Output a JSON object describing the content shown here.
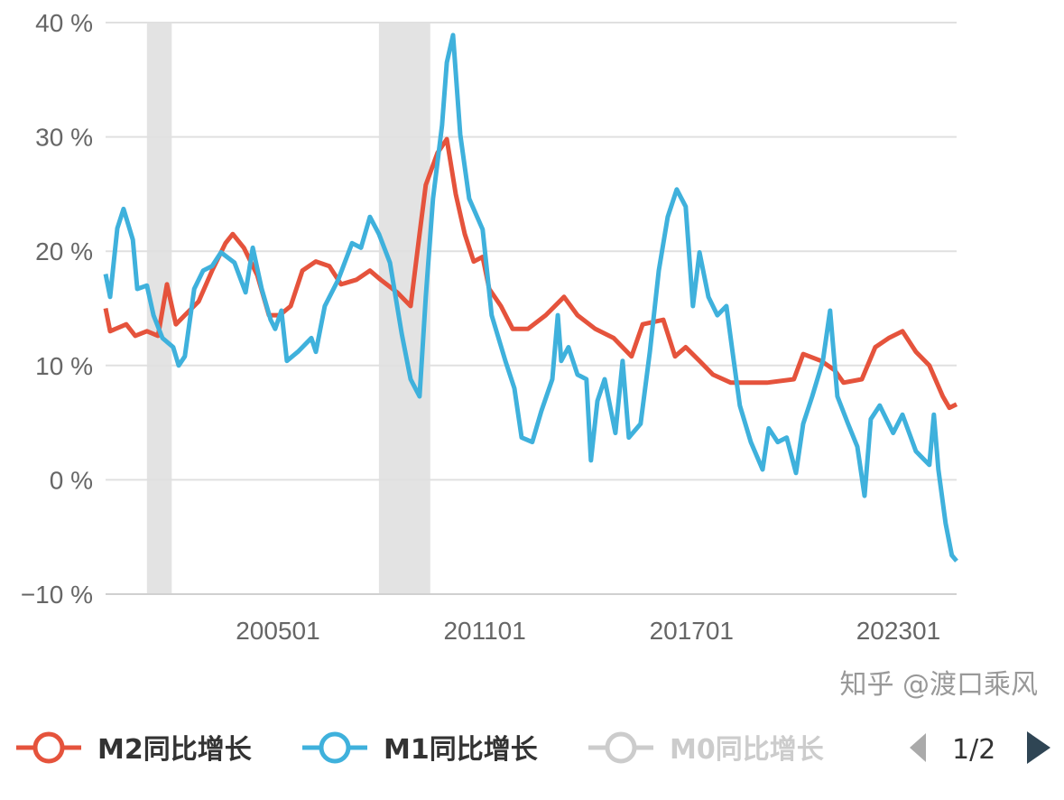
{
  "chart_data": {
    "type": "line",
    "title": "",
    "xlabel": "",
    "ylabel": "",
    "xlim": [
      2000.0,
      2024.69
    ],
    "ylim": [
      -10,
      40
    ],
    "grid": true,
    "y_ticks": [
      {
        "value": -10,
        "label": "−10 %"
      },
      {
        "value": 0,
        "label": "0 %"
      },
      {
        "value": 10,
        "label": "10 %"
      },
      {
        "value": 20,
        "label": "20 %"
      },
      {
        "value": 30,
        "label": "30 %"
      },
      {
        "value": 40,
        "label": "40 %"
      }
    ],
    "x_ticks": [
      {
        "value": 2005.0,
        "label": "200501"
      },
      {
        "value": 2011.0,
        "label": "201101"
      },
      {
        "value": 2017.0,
        "label": "201701"
      },
      {
        "value": 2023.0,
        "label": "202301"
      }
    ],
    "shaded_periods": [
      [
        2001.2,
        2001.92
      ],
      [
        2007.93,
        2009.42
      ]
    ],
    "shade_color": "#e3e3e3",
    "legend_position": "bottom",
    "series": [
      {
        "name": "M2同比增长",
        "color": "#e5533c",
        "visible": true,
        "points": [
          [
            2000.0,
            15
          ],
          [
            2000.13,
            13
          ],
          [
            2000.6,
            13.6
          ],
          [
            2000.86,
            12.6
          ],
          [
            2001.2,
            13
          ],
          [
            2001.52,
            12.6
          ],
          [
            2001.78,
            17.1
          ],
          [
            2002.04,
            13.6
          ],
          [
            2002.3,
            14.4
          ],
          [
            2002.7,
            15.6
          ],
          [
            2003.09,
            18.3
          ],
          [
            2003.48,
            20.7
          ],
          [
            2003.69,
            21.5
          ],
          [
            2004.01,
            20.3
          ],
          [
            2004.4,
            17.9
          ],
          [
            2004.74,
            14.4
          ],
          [
            2005.05,
            14.4
          ],
          [
            2005.37,
            15.2
          ],
          [
            2005.71,
            18.3
          ],
          [
            2006.1,
            19.1
          ],
          [
            2006.49,
            18.7
          ],
          [
            2006.83,
            17.1
          ],
          [
            2007.28,
            17.5
          ],
          [
            2007.67,
            18.3
          ],
          [
            2007.98,
            17.5
          ],
          [
            2008.46,
            16.4
          ],
          [
            2008.85,
            15.2
          ],
          [
            2009.11,
            21.5
          ],
          [
            2009.29,
            25.8
          ],
          [
            2009.63,
            28.6
          ],
          [
            2009.9,
            29.8
          ],
          [
            2010.16,
            25
          ],
          [
            2010.42,
            21.5
          ],
          [
            2010.68,
            19.1
          ],
          [
            2010.94,
            19.5
          ],
          [
            2011.13,
            16.7
          ],
          [
            2011.47,
            15.2
          ],
          [
            2011.81,
            13.2
          ],
          [
            2012.25,
            13.2
          ],
          [
            2012.77,
            14.4
          ],
          [
            2013.3,
            16
          ],
          [
            2013.69,
            14.4
          ],
          [
            2014.21,
            13.2
          ],
          [
            2014.74,
            12.4
          ],
          [
            2015.26,
            10.8
          ],
          [
            2015.58,
            13.6
          ],
          [
            2016.18,
            14
          ],
          [
            2016.52,
            10.8
          ],
          [
            2016.83,
            11.6
          ],
          [
            2017.23,
            10.4
          ],
          [
            2017.62,
            9.2
          ],
          [
            2018.14,
            8.5
          ],
          [
            2018.66,
            8.5
          ],
          [
            2019.19,
            8.5
          ],
          [
            2019.97,
            8.8
          ],
          [
            2020.24,
            11
          ],
          [
            2020.76,
            10.4
          ],
          [
            2021.15,
            9.6
          ],
          [
            2021.41,
            8.5
          ],
          [
            2021.94,
            8.8
          ],
          [
            2022.33,
            11.6
          ],
          [
            2022.72,
            12.4
          ],
          [
            2023.12,
            13
          ],
          [
            2023.51,
            11.2
          ],
          [
            2023.9,
            10
          ],
          [
            2024.29,
            7.3
          ],
          [
            2024.48,
            6.3
          ],
          [
            2024.69,
            6.6
          ]
        ]
      },
      {
        "name": "M1同比增长",
        "color": "#3fb1dc",
        "visible": true,
        "points": [
          [
            2000.0,
            18
          ],
          [
            2000.13,
            16
          ],
          [
            2000.34,
            22
          ],
          [
            2000.52,
            23.7
          ],
          [
            2000.79,
            21
          ],
          [
            2000.92,
            16.7
          ],
          [
            2001.2,
            17
          ],
          [
            2001.39,
            14.4
          ],
          [
            2001.65,
            12.4
          ],
          [
            2001.96,
            11.6
          ],
          [
            2002.12,
            10
          ],
          [
            2002.3,
            10.8
          ],
          [
            2002.57,
            16.7
          ],
          [
            2002.83,
            18.3
          ],
          [
            2003.09,
            18.7
          ],
          [
            2003.35,
            19.9
          ],
          [
            2003.74,
            19
          ],
          [
            2004.06,
            16.4
          ],
          [
            2004.27,
            20.3
          ],
          [
            2004.53,
            16.7
          ],
          [
            2004.79,
            14
          ],
          [
            2004.92,
            13.2
          ],
          [
            2005.1,
            14.8
          ],
          [
            2005.26,
            10.4
          ],
          [
            2005.58,
            11.2
          ],
          [
            2005.97,
            12.4
          ],
          [
            2006.1,
            11.2
          ],
          [
            2006.36,
            15.2
          ],
          [
            2006.75,
            17.5
          ],
          [
            2007.15,
            20.7
          ],
          [
            2007.41,
            20.3
          ],
          [
            2007.67,
            23
          ],
          [
            2007.93,
            21.5
          ],
          [
            2008.25,
            19
          ],
          [
            2008.59,
            12.8
          ],
          [
            2008.85,
            8.8
          ],
          [
            2009.11,
            7.3
          ],
          [
            2009.29,
            16
          ],
          [
            2009.5,
            24.6
          ],
          [
            2009.76,
            31
          ],
          [
            2009.9,
            36.5
          ],
          [
            2010.08,
            38.9
          ],
          [
            2010.29,
            30.2
          ],
          [
            2010.55,
            24.6
          ],
          [
            2010.94,
            21.9
          ],
          [
            2011.2,
            14.4
          ],
          [
            2011.6,
            10.4
          ],
          [
            2011.86,
            8
          ],
          [
            2012.07,
            3.7
          ],
          [
            2012.38,
            3.3
          ],
          [
            2012.64,
            6
          ],
          [
            2012.96,
            8.8
          ],
          [
            2013.12,
            14.4
          ],
          [
            2013.22,
            10.4
          ],
          [
            2013.43,
            11.6
          ],
          [
            2013.69,
            9.2
          ],
          [
            2013.95,
            8.8
          ],
          [
            2014.08,
            1.7
          ],
          [
            2014.27,
            6.9
          ],
          [
            2014.48,
            8.8
          ],
          [
            2014.79,
            4.1
          ],
          [
            2015.0,
            10.4
          ],
          [
            2015.18,
            3.7
          ],
          [
            2015.52,
            4.9
          ],
          [
            2015.79,
            11.2
          ],
          [
            2016.05,
            18.3
          ],
          [
            2016.31,
            23
          ],
          [
            2016.57,
            25.4
          ],
          [
            2016.83,
            23.9
          ],
          [
            2017.04,
            15.2
          ],
          [
            2017.23,
            19.9
          ],
          [
            2017.49,
            16
          ],
          [
            2017.75,
            14.4
          ],
          [
            2018.01,
            15.2
          ],
          [
            2018.19,
            11.2
          ],
          [
            2018.4,
            6.5
          ],
          [
            2018.72,
            3.3
          ],
          [
            2019.06,
            0.9
          ],
          [
            2019.24,
            4.5
          ],
          [
            2019.5,
            3.3
          ],
          [
            2019.76,
            3.7
          ],
          [
            2020.03,
            0.6
          ],
          [
            2020.24,
            4.9
          ],
          [
            2020.5,
            7.3
          ],
          [
            2020.81,
            10.4
          ],
          [
            2021.02,
            14.8
          ],
          [
            2021.23,
            7.3
          ],
          [
            2021.54,
            4.9
          ],
          [
            2021.81,
            2.9
          ],
          [
            2022.02,
            -1.4
          ],
          [
            2022.2,
            5.3
          ],
          [
            2022.46,
            6.5
          ],
          [
            2022.85,
            4.1
          ],
          [
            2023.12,
            5.7
          ],
          [
            2023.51,
            2.5
          ],
          [
            2023.9,
            1.3
          ],
          [
            2024.03,
            5.7
          ],
          [
            2024.16,
            0.9
          ],
          [
            2024.37,
            -3.8
          ],
          [
            2024.55,
            -6.6
          ],
          [
            2024.69,
            -7.1
          ]
        ]
      },
      {
        "name": "M0同比增长",
        "color": "#cccccc",
        "visible": false,
        "points": []
      }
    ]
  },
  "legend": {
    "page_indicator": "1/2"
  },
  "watermark": "知乎 @渡口乘风"
}
